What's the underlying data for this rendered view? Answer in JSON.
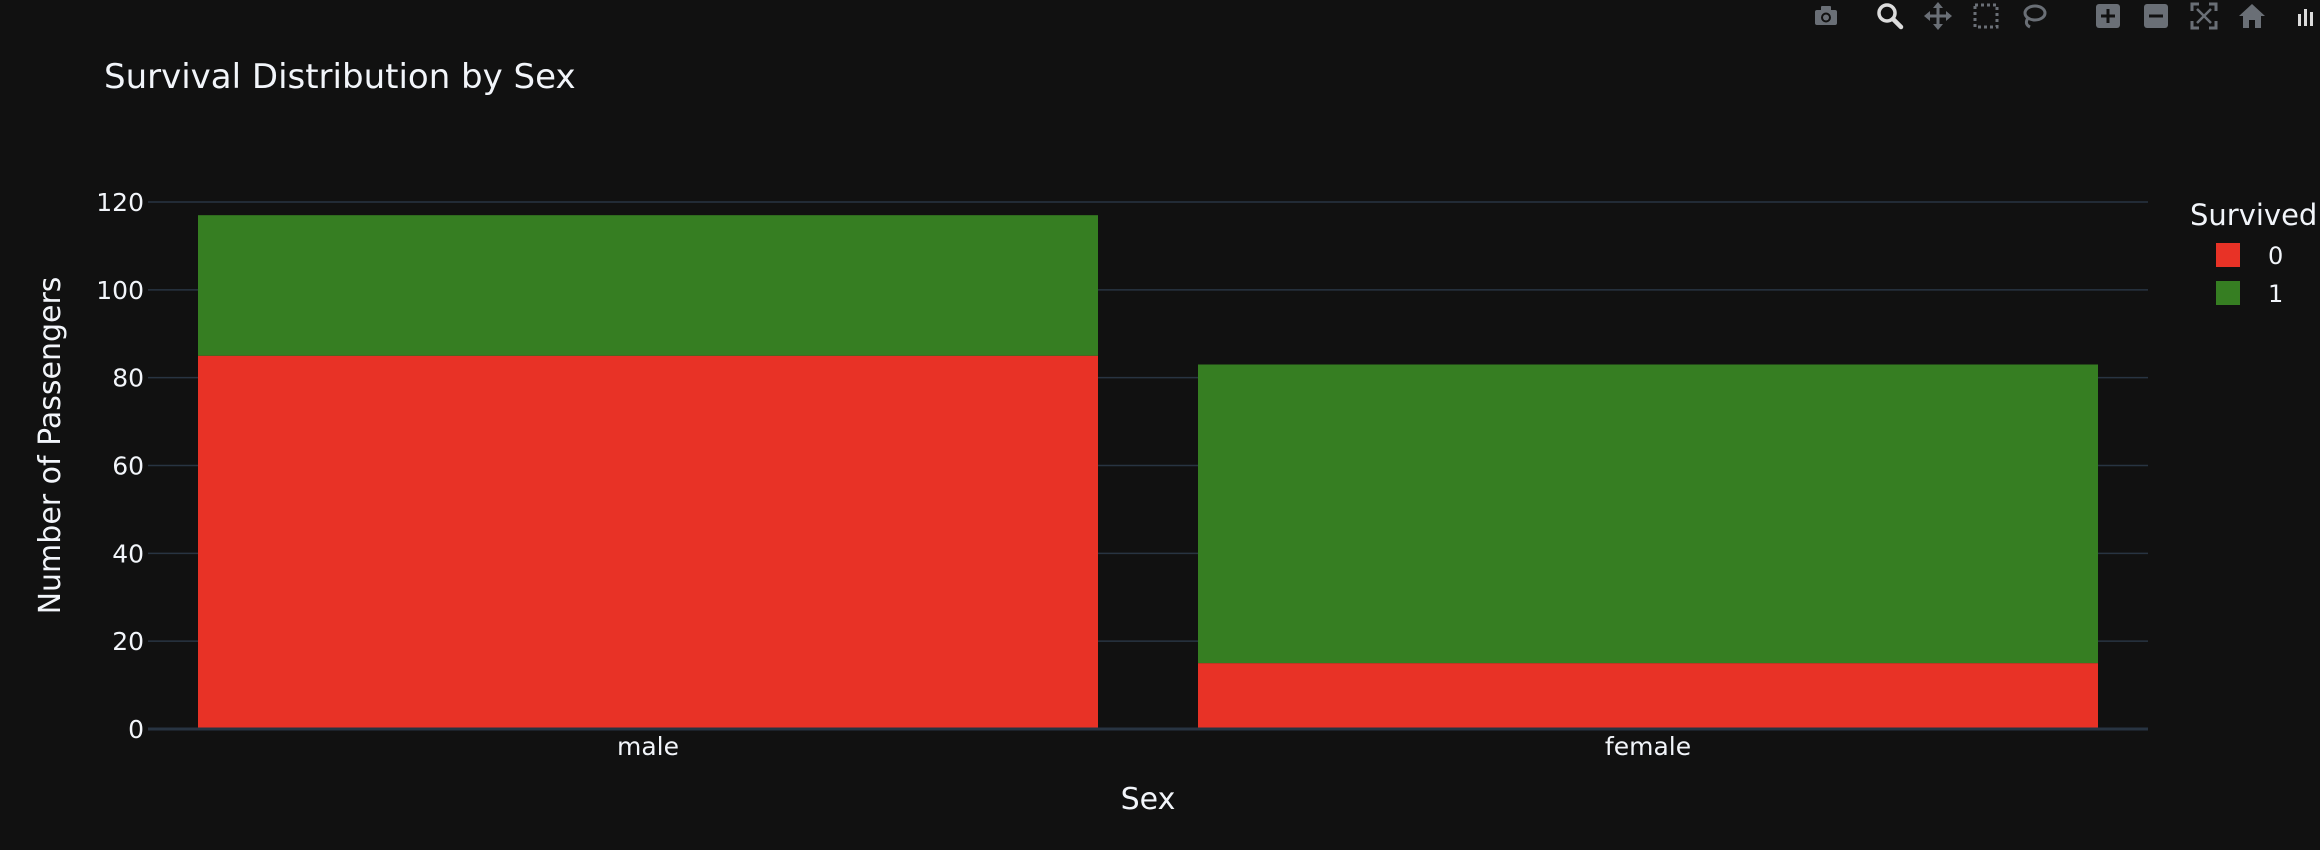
{
  "toolbar": {
    "icons": [
      "camera-icon",
      "zoom-icon",
      "pan-icon",
      "box-select-icon",
      "lasso-select-icon",
      "zoom-in-icon",
      "zoom-out-icon",
      "autoscale-icon",
      "reset-axes-icon",
      "plotly-logo-icon"
    ]
  },
  "colors": {
    "background": "#111111",
    "grid": "#283442",
    "text": "#f2f5fa",
    "series_0": "#e83226",
    "series_1": "#367e22",
    "modebar_icon": "#6a6f76"
  },
  "chart_data": {
    "type": "bar",
    "barmode": "stack",
    "title": "Survival Distribution by Sex",
    "xlabel": "Sex",
    "ylabel": "Number of Passengers",
    "categories": [
      "male",
      "female"
    ],
    "series": [
      {
        "name": "0",
        "values": [
          85,
          15
        ]
      },
      {
        "name": "1",
        "values": [
          32,
          68
        ]
      }
    ],
    "ylim": [
      0,
      120
    ],
    "yticks": [
      0,
      20,
      40,
      60,
      80,
      100,
      120
    ],
    "grid": true,
    "legend": {
      "title": "Survived",
      "placement": "top-right"
    }
  }
}
